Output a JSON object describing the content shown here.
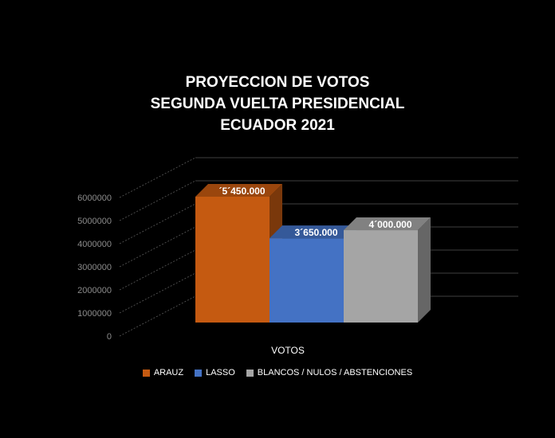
{
  "chart_data": {
    "type": "bar",
    "title_lines": [
      "PROYECCION DE VOTOS",
      "SEGUNDA VUELTA PRESIDENCIAL",
      "ECUADOR 2021"
    ],
    "xlabel": "VOTOS",
    "ylabel": "",
    "ylim": [
      0,
      6000000
    ],
    "y_ticks": [
      {
        "value": 0,
        "label": "0"
      },
      {
        "value": 1000000,
        "label": "1000000"
      },
      {
        "value": 2000000,
        "label": "2000000"
      },
      {
        "value": 3000000,
        "label": "3000000"
      },
      {
        "value": 4000000,
        "label": "4000000"
      },
      {
        "value": 5000000,
        "label": "5000000"
      },
      {
        "value": 6000000,
        "label": "6000000"
      }
    ],
    "grid": true,
    "legend_position": "bottom",
    "categories": [
      "VOTOS"
    ],
    "series": [
      {
        "name": "ARAUZ",
        "value": 5450000,
        "label": "´5´450.000",
        "color": "#C55A11"
      },
      {
        "name": "LASSO",
        "value": 3650000,
        "label": "3´650.000",
        "color": "#4472C4"
      },
      {
        "name": "BLANCOS / NULOS / ABSTENCIONES",
        "value": 4000000,
        "label": "4´000.000",
        "color": "#A5A5A5"
      }
    ]
  }
}
